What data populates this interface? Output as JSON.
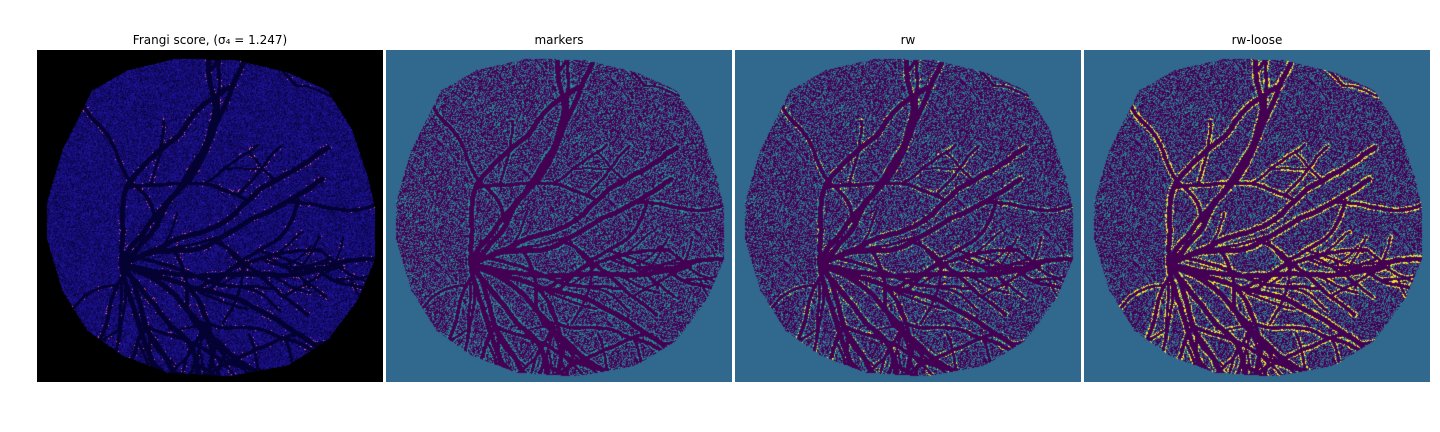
{
  "figure": {
    "panels": [
      {
        "title": "Frangi score, (σ₄ = 1.247)",
        "colormap": "plasma",
        "background": "#000000",
        "name": "frangi-score-panel"
      },
      {
        "title": "markers",
        "colormap": "viridis",
        "background": "#31688e",
        "name": "markers-panel"
      },
      {
        "title": "rw",
        "colormap": "viridis",
        "background": "#31688e",
        "name": "rw-panel"
      },
      {
        "title": "rw-loose",
        "colormap": "viridis",
        "background": "#31688e",
        "name": "rw-loose-panel"
      }
    ]
  }
}
